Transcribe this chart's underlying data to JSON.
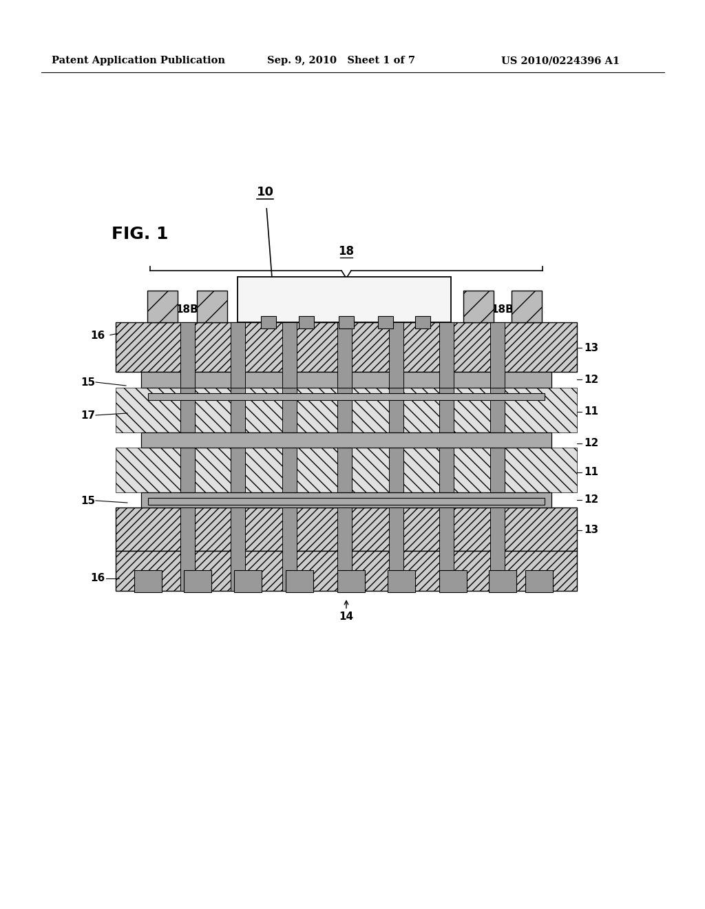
{
  "bg_color": "#ffffff",
  "header_left": "Patent Application Publication",
  "header_mid": "Sep. 9, 2010   Sheet 1 of 7",
  "header_right": "US 2010/0224396 A1",
  "fig_label": "FIG. 1",
  "hatch_fc_13": "#cccccc",
  "hatch_fc_11": "#e0e0e0",
  "conductor_fc": "#aaaaaa",
  "via_fc": "#999999",
  "chip_fc": "#f5f5f5",
  "bump_fc": "#bbbbbb",
  "outline_color": "#000000"
}
